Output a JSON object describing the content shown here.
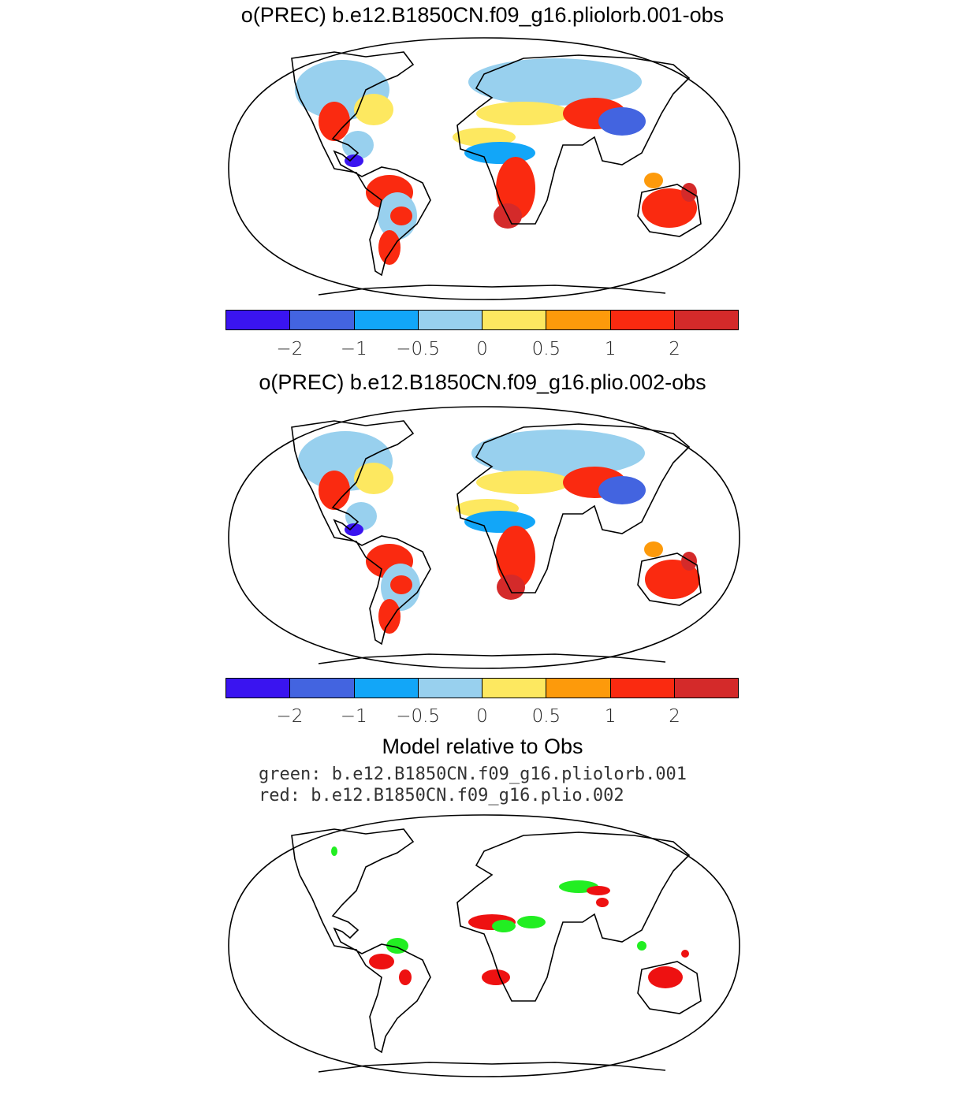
{
  "panels": [
    {
      "title": "o(PREC) b.e12.B1850CN.f09_g16.pliolorb.001-obs"
    },
    {
      "title": "o(PREC) b.e12.B1850CN.f09_g16.plio.002-obs"
    }
  ],
  "colorbar": {
    "colors": [
      "#3a14f0",
      "#4364e0",
      "#12a6f8",
      "#98d0ee",
      "#fde860",
      "#fd9a0b",
      "#fa2a10",
      "#d42a2a"
    ],
    "labels": [
      "−2",
      "−1",
      "−0.5",
      "0",
      "0.5",
      "1",
      "2"
    ]
  },
  "comparison": {
    "title": "Model relative to Obs",
    "legend_green": "green: b.e12.B1850CN.f09_g16.pliolorb.001",
    "legend_red": "red: b.e12.B1850CN.f09_g16.plio.002",
    "colors": {
      "green": "#22ee22",
      "red": "#ee1111"
    }
  }
}
